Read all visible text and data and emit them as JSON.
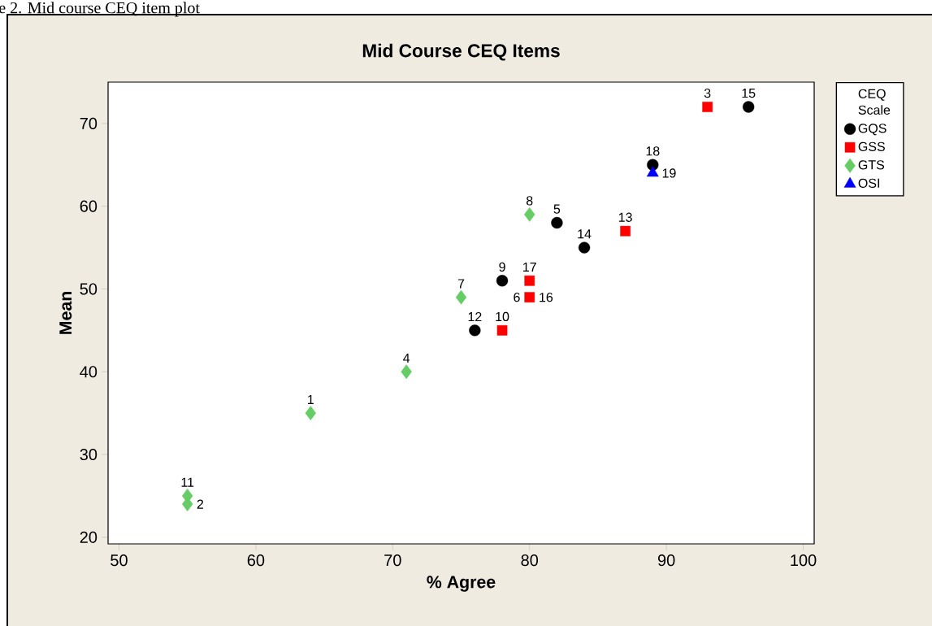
{
  "chart_data": {
    "type": "scatter",
    "title": "Mid Course CEQ Items",
    "xlabel": "% Agree",
    "ylabel": "Mean",
    "legend_title": "CEQ Scale",
    "xlim": [
      49.2,
      100.8
    ],
    "ylim": [
      19.2,
      75
    ],
    "xticks": [
      50,
      60,
      70,
      80,
      90,
      100
    ],
    "yticks": [
      20,
      30,
      40,
      50,
      60,
      70
    ],
    "grid": false,
    "legend": "right",
    "series": [
      {
        "name": "GQS",
        "color": "#000000",
        "marker": "circle",
        "x": [
          96,
          89,
          82,
          84,
          78,
          76
        ],
        "values": [
          72,
          65,
          58,
          55,
          51,
          45
        ]
      },
      {
        "name": "GSS",
        "color": "#ff0000",
        "marker": "square",
        "x": [
          93,
          87,
          80,
          80,
          78
        ],
        "values": [
          72,
          57,
          51,
          49,
          45
        ]
      },
      {
        "name": "GTS",
        "color": "#66cc66",
        "marker": "diamond",
        "x": [
          80,
          75,
          71,
          64,
          55,
          55
        ],
        "values": [
          59,
          49,
          40,
          35,
          25,
          24
        ]
      },
      {
        "name": "OSI",
        "color": "#0000ff",
        "marker": "triangle",
        "x": [
          89
        ],
        "values": [
          64
        ]
      }
    ],
    "annotations": [
      "e 2. Mid course CEQ item plot",
      {
        "text": "15",
        "x": 96,
        "y": 72
      },
      {
        "text": "18",
        "x": 89,
        "y": 65
      },
      {
        "text": "5",
        "x": 82,
        "y": 58
      },
      {
        "text": "14",
        "x": 84,
        "y": 55
      },
      {
        "text": "9",
        "x": 78,
        "y": 51
      },
      {
        "text": "16",
        "x": 80,
        "y": 49
      },
      {
        "text": "12",
        "x": 76,
        "y": 45
      },
      {
        "text": "3",
        "x": 93,
        "y": 72
      },
      {
        "text": "13",
        "x": 87,
        "y": 57
      },
      {
        "text": "17",
        "x": 80,
        "y": 51
      },
      {
        "text": "6",
        "x": 80,
        "y": 49
      },
      {
        "text": "10",
        "x": 78,
        "y": 45
      },
      {
        "text": "8",
        "x": 80,
        "y": 59
      },
      {
        "text": "7",
        "x": 75,
        "y": 49
      },
      {
        "text": "4",
        "x": 71,
        "y": 40
      },
      {
        "text": "1",
        "x": 64,
        "y": 35
      },
      {
        "text": "11",
        "x": 55,
        "y": 25
      },
      {
        "text": "2",
        "x": 55,
        "y": 24
      },
      {
        "text": "19",
        "x": 89,
        "y": 64
      }
    ]
  }
}
